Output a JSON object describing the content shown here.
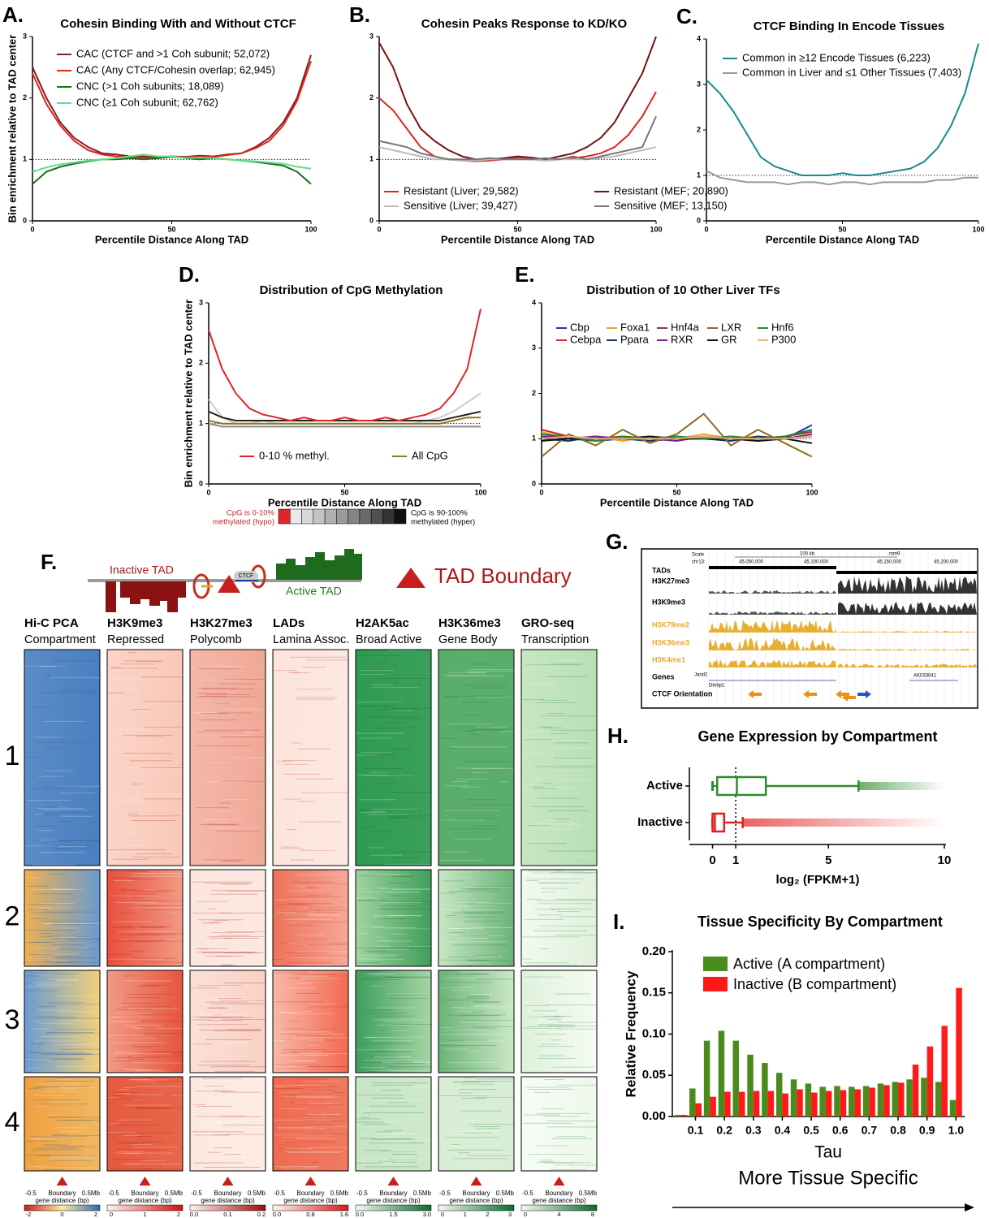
{
  "chart_data": [
    {
      "type": "line",
      "label": "A.",
      "title": "Cohesin Binding With and Without CTCF",
      "xlabel": "Percentile Distance Along TAD",
      "ylabel": "Bin enrichment relative to TAD center",
      "x": [
        0,
        5,
        10,
        15,
        20,
        25,
        30,
        35,
        40,
        45,
        50,
        55,
        60,
        65,
        70,
        75,
        80,
        85,
        90,
        95,
        100
      ],
      "xlim": [
        0,
        100
      ],
      "xticks": [
        0,
        50,
        100
      ],
      "ylim": [
        0,
        3
      ],
      "yticks": [
        0,
        1,
        2,
        3
      ],
      "hline": 1,
      "legend": "upper left",
      "series": [
        {
          "name": "CAC (CTCF and >1 Coh subunit; 52,072)",
          "color": "#8b1a1a",
          "values": [
            2.5,
            2.0,
            1.6,
            1.35,
            1.2,
            1.1,
            1.08,
            1.05,
            1.05,
            1.03,
            1.05,
            1.04,
            1.06,
            1.05,
            1.08,
            1.1,
            1.2,
            1.35,
            1.6,
            2.0,
            2.7
          ]
        },
        {
          "name": "CAC (Any CTCF/Cohesin overlap; 62,945)",
          "color": "#e02424",
          "values": [
            2.4,
            1.9,
            1.55,
            1.3,
            1.15,
            1.08,
            1.05,
            1.04,
            1.03,
            1.02,
            1.04,
            1.03,
            1.05,
            1.04,
            1.07,
            1.1,
            1.18,
            1.3,
            1.55,
            1.95,
            2.6
          ]
        },
        {
          "name": "CNC (>1 Coh subunits; 18,089)",
          "color": "#1e6b1e",
          "values": [
            0.6,
            0.8,
            0.88,
            0.93,
            0.97,
            1.0,
            1.0,
            1.02,
            1.0,
            1.02,
            1.05,
            1.02,
            1.0,
            1.02,
            1.0,
            0.98,
            0.96,
            0.93,
            0.9,
            0.8,
            0.6
          ]
        },
        {
          "name": "CNC (≥1 Coh subunit; 62,762)",
          "color": "#5ee08a",
          "values": [
            0.8,
            0.87,
            0.92,
            0.95,
            0.98,
            1.0,
            1.02,
            1.05,
            1.08,
            1.05,
            1.05,
            1.02,
            1.03,
            1.02,
            1.0,
            0.98,
            0.97,
            0.95,
            0.93,
            0.88,
            0.85
          ]
        }
      ]
    },
    {
      "type": "line",
      "label": "B.",
      "title": "Cohesin Peaks Response to KD/KO",
      "xlabel": "Percentile Distance Along TAD",
      "x": [
        0,
        5,
        10,
        15,
        20,
        25,
        30,
        35,
        40,
        45,
        50,
        55,
        60,
        65,
        70,
        75,
        80,
        85,
        90,
        95,
        100
      ],
      "xlim": [
        0,
        100
      ],
      "xticks": [
        0,
        50,
        100
      ],
      "ylim": [
        0,
        3
      ],
      "yticks": [
        0,
        1,
        2,
        3
      ],
      "hline": 1,
      "legend": "lower center",
      "series": [
        {
          "name": "Resistant (Liver; 29,582)",
          "color": "#e02424",
          "values": [
            2.0,
            1.8,
            1.5,
            1.2,
            1.05,
            1.0,
            0.98,
            0.97,
            0.98,
            1.0,
            1.02,
            1.0,
            0.98,
            1.0,
            1.02,
            1.05,
            1.1,
            1.2,
            1.4,
            1.7,
            2.1
          ]
        },
        {
          "name": "Resistant (MEF; 20,890)",
          "color": "#7a1010",
          "values": [
            2.9,
            2.5,
            1.9,
            1.5,
            1.3,
            1.15,
            1.05,
            1.0,
            1.0,
            1.02,
            1.05,
            1.03,
            1.0,
            1.05,
            1.1,
            1.2,
            1.35,
            1.6,
            2.0,
            2.4,
            3.0
          ]
        },
        {
          "name": "Sensitive (Liver; 39,427)",
          "color": "#bbbbbb",
          "values": [
            1.2,
            1.15,
            1.1,
            1.05,
            1.0,
            1.0,
            0.98,
            0.98,
            1.0,
            1.0,
            1.0,
            1.0,
            0.98,
            1.0,
            1.0,
            1.0,
            1.02,
            1.05,
            1.1,
            1.15,
            1.2
          ]
        },
        {
          "name": "Sensitive (MEF; 13,150)",
          "color": "#777777",
          "values": [
            1.3,
            1.25,
            1.2,
            1.1,
            1.05,
            1.0,
            1.0,
            1.0,
            1.02,
            1.0,
            1.0,
            1.0,
            1.02,
            1.0,
            1.05,
            1.0,
            1.05,
            1.1,
            1.15,
            1.2,
            1.7
          ]
        }
      ]
    },
    {
      "type": "line",
      "label": "C.",
      "title": "CTCF Binding In Encode Tissues",
      "xlabel": "Percentile Distance Along TAD",
      "x": [
        0,
        5,
        10,
        15,
        20,
        25,
        30,
        35,
        40,
        45,
        50,
        55,
        60,
        65,
        70,
        75,
        80,
        85,
        90,
        95,
        100
      ],
      "xlim": [
        0,
        100
      ],
      "xticks": [
        0,
        50,
        100
      ],
      "ylim": [
        0,
        4
      ],
      "yticks": [
        0,
        1,
        2,
        3,
        4
      ],
      "hline": 1,
      "legend": "upper left",
      "series": [
        {
          "name": "Common in ≥12 Encode Tissues (6,223)",
          "color": "#1a8a8a",
          "values": [
            3.1,
            2.8,
            2.4,
            1.9,
            1.4,
            1.2,
            1.1,
            1.0,
            1.0,
            1.0,
            1.05,
            1.0,
            1.0,
            1.05,
            1.1,
            1.15,
            1.3,
            1.6,
            2.1,
            2.8,
            3.9
          ]
        },
        {
          "name": "Common in Liver and ≤1 Other Tissues (7,403)",
          "color": "#999999",
          "values": [
            1.1,
            0.95,
            0.9,
            0.85,
            0.85,
            0.85,
            0.8,
            0.85,
            0.85,
            0.8,
            0.85,
            0.85,
            0.8,
            0.85,
            0.85,
            0.85,
            0.85,
            0.9,
            0.9,
            0.95,
            0.95
          ]
        }
      ]
    },
    {
      "type": "line",
      "label": "D.",
      "title": "Distribution of CpG Methylation",
      "xlabel": "Percentile Distance Along TAD",
      "ylabel": "Bin enrichment relative to TAD center",
      "x": [
        0,
        5,
        10,
        15,
        20,
        25,
        30,
        35,
        40,
        45,
        50,
        55,
        60,
        65,
        70,
        75,
        80,
        85,
        90,
        95,
        100
      ],
      "xlim": [
        0,
        100
      ],
      "xticks": [
        0,
        50,
        100
      ],
      "ylim": [
        0,
        3
      ],
      "yticks": [
        0,
        1,
        2,
        3
      ],
      "hline": 1,
      "legend": "lower center",
      "colorbar_colors": [
        "#e0242a",
        "#e8e8e8",
        "#d8d8d8",
        "#c4c4c4",
        "#b0b0b0",
        "#9a9a9a",
        "#848484",
        "#6a6a6a",
        "#505050",
        "#333333",
        "#111111"
      ],
      "colorbar_left": [
        "CpG is 0-10%",
        "methylated (hypo)"
      ],
      "colorbar_right": [
        "CpG is 90-100%",
        "methylated (hyper)"
      ],
      "series": [
        {
          "color": "#cccccc",
          "values": [
            1.4,
            1.1,
            1.0,
            1.0,
            1.05,
            1.0,
            1.0,
            1.0,
            1.0,
            1.0,
            1.0,
            1.0,
            1.0,
            1.0,
            1.0,
            1.0,
            1.05,
            1.1,
            1.2,
            1.35,
            1.5
          ]
        },
        {
          "color": "#888888",
          "values": [
            1.0,
            0.95,
            0.95,
            0.95,
            0.95,
            0.95,
            0.95,
            0.95,
            0.95,
            0.95,
            0.95,
            0.95,
            0.95,
            0.95,
            0.95,
            0.95,
            0.95,
            0.95,
            0.95,
            0.95,
            0.95
          ]
        },
        {
          "color": "#222222",
          "values": [
            1.2,
            1.1,
            1.05,
            1.05,
            1.05,
            1.05,
            1.05,
            1.05,
            1.05,
            1.05,
            1.05,
            1.05,
            1.05,
            1.05,
            1.05,
            1.05,
            1.05,
            1.05,
            1.1,
            1.15,
            1.2
          ]
        },
        {
          "name": "0-10 % methyl.",
          "color": "#e02424",
          "values": [
            2.55,
            1.9,
            1.5,
            1.25,
            1.15,
            1.1,
            1.05,
            1.1,
            1.05,
            1.05,
            1.1,
            1.05,
            1.05,
            1.1,
            1.05,
            1.1,
            1.15,
            1.25,
            1.5,
            1.9,
            2.9
          ]
        },
        {
          "name": "All CpG",
          "color": "#8b7a20",
          "values": [
            1.05,
            1.0,
            1.0,
            1.0,
            1.0,
            1.0,
            1.0,
            1.0,
            1.0,
            1.0,
            1.0,
            1.0,
            1.0,
            1.0,
            1.0,
            1.0,
            1.0,
            1.0,
            1.05,
            1.1,
            1.1
          ]
        }
      ]
    },
    {
      "type": "line",
      "label": "E.",
      "title": "Distribution of 10 Other Liver TFs",
      "xlabel": "Percentile Distance Along TAD",
      "x": [
        0,
        10,
        20,
        30,
        40,
        50,
        60,
        70,
        80,
        90,
        100
      ],
      "xlim": [
        0,
        100
      ],
      "xticks": [
        0,
        50,
        100
      ],
      "ylim": [
        0,
        4
      ],
      "yticks": [
        0,
        1,
        2,
        3,
        4
      ],
      "hline": 1,
      "legend": "upper left",
      "series": [
        {
          "name": "Cbp",
          "color": "#2233bb",
          "values": [
            1.1,
            1.0,
            0.95,
            1.0,
            1.05,
            1.0,
            1.05,
            1.0,
            0.95,
            1.0,
            1.3
          ]
        },
        {
          "name": "Cebpa",
          "color": "#dd2222",
          "values": [
            1.2,
            1.05,
            1.0,
            1.05,
            1.0,
            1.0,
            1.0,
            1.05,
            1.0,
            1.05,
            1.2
          ]
        },
        {
          "name": "Foxa1",
          "color": "#f0a020",
          "values": [
            1.15,
            1.0,
            1.05,
            0.95,
            1.05,
            1.0,
            1.1,
            1.0,
            1.05,
            1.0,
            1.1
          ]
        },
        {
          "name": "Ppara",
          "color": "#113366",
          "values": [
            1.0,
            0.95,
            1.05,
            1.0,
            0.95,
            1.0,
            1.0,
            0.95,
            1.05,
            1.0,
            1.05
          ]
        },
        {
          "name": "Hnf4a",
          "color": "#993333",
          "values": [
            1.1,
            1.0,
            1.0,
            1.05,
            1.0,
            1.05,
            1.0,
            1.0,
            1.0,
            1.05,
            1.15
          ]
        },
        {
          "name": "RXR",
          "color": "#772299",
          "values": [
            1.05,
            1.0,
            1.05,
            1.0,
            1.0,
            0.95,
            1.05,
            1.0,
            1.0,
            1.0,
            1.1
          ]
        },
        {
          "name": "LXR",
          "color": "#8b6b20",
          "values": [
            0.6,
            1.1,
            0.85,
            1.2,
            0.9,
            1.1,
            1.55,
            0.85,
            1.2,
            0.9,
            0.6
          ]
        },
        {
          "name": "GR",
          "color": "#111111",
          "values": [
            0.95,
            1.0,
            1.0,
            1.0,
            1.05,
            1.0,
            1.0,
            1.0,
            0.95,
            1.0,
            0.9
          ]
        },
        {
          "name": "Hnf6",
          "color": "#228833",
          "values": [
            1.1,
            1.05,
            0.95,
            1.05,
            1.0,
            1.05,
            1.0,
            1.05,
            1.0,
            1.05,
            1.2
          ]
        },
        {
          "name": "P300",
          "color": "#e8b080",
          "values": [
            1.0,
            1.05,
            1.0,
            1.0,
            1.0,
            1.0,
            1.05,
            1.0,
            1.0,
            1.0,
            1.05
          ]
        }
      ]
    },
    {
      "type": "box",
      "label": "H.",
      "title": "Gene Expression by Compartment",
      "xlabel": "log₂ (FPKM+1)",
      "categories": [
        "Active",
        "Inactive"
      ],
      "xlim": [
        -1,
        10
      ],
      "xticks": [
        0,
        1,
        5,
        10
      ],
      "refline": 1,
      "boxes": [
        {
          "min": 0,
          "q1": 0.2,
          "median": 1.05,
          "q3": 2.3,
          "max": 6.3,
          "outlier_max": 10,
          "color": "#2e8b2e"
        },
        {
          "min": 0,
          "q1": 0,
          "median": 0.1,
          "q3": 0.5,
          "max": 1.3,
          "outlier_max": 10,
          "color": "#e02020"
        }
      ]
    },
    {
      "type": "bar",
      "label": "I.",
      "title": "Tissue Specificity By Compartment",
      "xlabel": "Tau",
      "ylabel": "Relative Frequency",
      "annotation": "More Tissue Specific",
      "x": [
        0.05,
        0.1,
        0.15,
        0.2,
        0.25,
        0.3,
        0.35,
        0.4,
        0.45,
        0.5,
        0.55,
        0.6,
        0.65,
        0.7,
        0.75,
        0.8,
        0.85,
        0.9,
        0.95,
        1
      ],
      "xlim": [
        0.02,
        1.03
      ],
      "xticks": [
        0.1,
        0.2,
        0.3,
        0.4,
        0.5,
        0.6,
        0.7,
        0.8,
        0.9,
        {
          "value": 1,
          "label": "1.0"
        }
      ],
      "ylim": [
        0,
        0.2
      ],
      "yticks": [
        {
          "value": 0,
          "label": "0.00"
        },
        {
          "value": 0.05,
          "label": "0.05"
        },
        {
          "value": 0.1,
          "label": "0.10"
        },
        {
          "value": 0.15,
          "label": "0.15"
        },
        {
          "value": 0.2,
          "label": "0.20"
        }
      ],
      "legend": "upper left",
      "series": [
        {
          "name": "Active (A compartment)",
          "color": "#4a8c1c",
          "values": [
            0.002,
            0.034,
            0.092,
            0.104,
            0.092,
            0.075,
            0.065,
            0.053,
            0.045,
            0.04,
            0.036,
            0.037,
            0.036,
            0.037,
            0.04,
            0.042,
            0.045,
            0.047,
            0.042,
            0.02
          ]
        },
        {
          "name": "Inactive (B compartment)",
          "color": "#ff1a1a",
          "values": [
            0.002,
            0.016,
            0.024,
            0.03,
            0.03,
            0.031,
            0.031,
            0.028,
            0.033,
            0.029,
            0.031,
            0.032,
            0.033,
            0.035,
            0.038,
            0.041,
            0.063,
            0.085,
            0.11,
            0.156
          ]
        }
      ]
    }
  ],
  "panel_f": {
    "label": "F.",
    "schematic": {
      "inactive": "Inactive TAD",
      "active": "Active TAD",
      "ctcf": "CTCF",
      "boundary": "TAD Boundary"
    },
    "columns": [
      {
        "title": "Hi-C PCA",
        "subtitle": "Compartment",
        "colorbar_ticks": [
          -2,
          0,
          2
        ]
      },
      {
        "title": "H3K9me3",
        "subtitle": "Repressed",
        "colorbar_ticks": [
          0,
          1,
          2
        ]
      },
      {
        "title": "H3K27me3",
        "subtitle": "Polycomb",
        "colorbar_ticks": [
          {
            "value": 0,
            "label": "0.0"
          },
          0.1,
          0.2
        ]
      },
      {
        "title": "LADs",
        "subtitle": "Lamina Assoc.",
        "colorbar_ticks": [
          {
            "value": 0,
            "label": "0.0"
          },
          0.8,
          1.6
        ]
      },
      {
        "title": "H2AK5ac",
        "subtitle": "Broad Active",
        "colorbar_ticks": [
          {
            "value": 0,
            "label": "0.0"
          },
          1.5,
          {
            "value": 3,
            "label": "3.0"
          }
        ]
      },
      {
        "title": "H3K36me3",
        "subtitle": "Gene Body",
        "colorbar_ticks": [
          0,
          1,
          2,
          3
        ]
      },
      {
        "title": "GRO-seq",
        "subtitle": "Transcription",
        "colorbar_ticks": [
          0,
          4,
          8
        ]
      }
    ],
    "clusters": [
      "1",
      "2",
      "3",
      "4"
    ],
    "axis": {
      "left": "-0.5",
      "center": "Boundary",
      "right": "0.5Mb",
      "label": "gene distance (bp)"
    }
  },
  "panel_g": {
    "label": "G.",
    "scale": "Scale",
    "scale_size": "100 kb",
    "genome": "mm9",
    "chrom": "chr13:",
    "positions": [
      "45,050,000",
      "45,100,000",
      "45,150,000",
      "45,200,000"
    ],
    "tracks": [
      "TADs",
      "H3K27me3",
      "H3K9me3",
      "H3K79me2",
      "H3K36me3",
      "H3K4me1",
      "Genes",
      "CTCF Orientation"
    ],
    "genes": [
      "Jarid2",
      "Dtnbp1",
      "AK033041"
    ]
  }
}
